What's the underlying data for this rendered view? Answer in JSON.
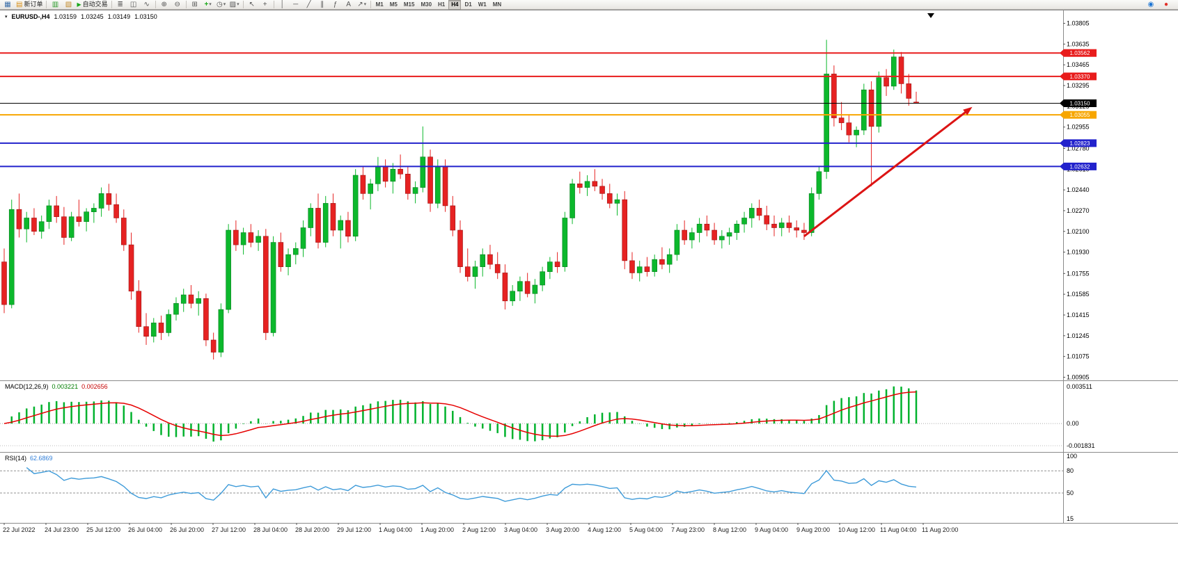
{
  "toolbar": {
    "new_order_label": "新订单",
    "autotrading_label": "自动交易",
    "timeframes": [
      "M1",
      "M5",
      "M15",
      "M30",
      "H1",
      "H4",
      "D1",
      "W1",
      "MN"
    ],
    "active_timeframe": "H4"
  },
  "icons": {
    "chart_window": "▦",
    "doc": "▤",
    "market_watch": "▥",
    "navigator": "▧",
    "play": "▶",
    "bars": "≣",
    "candles": "◫",
    "line_chart": "∿",
    "zoom_in": "⊕",
    "zoom_out": "⊖",
    "tile": "⊞",
    "indicators": "+",
    "clock": "◷",
    "template": "▨",
    "cursor": "↖",
    "crosshair": "+",
    "vline": "│",
    "hline": "─",
    "trendline": "╱",
    "channel": "∥",
    "fibo": "ƒ",
    "text_tool": "A",
    "arrow_tool": "↗",
    "dropdown": "▾",
    "community": "◉",
    "update": "●"
  },
  "header": {
    "title": "EURUSD-,H4",
    "open": "1.03159",
    "high": "1.03245",
    "low": "1.03149",
    "close": "1.03150"
  },
  "price_lines": [
    {
      "label": "1.03562",
      "value": 1.03562,
      "color": "#e81c1c",
      "width": 2
    },
    {
      "label": "1.03370",
      "value": 1.0337,
      "color": "#e81c1c",
      "width": 2
    },
    {
      "label": "1.03150",
      "value": 1.0315,
      "color": "#000000",
      "width": 1
    },
    {
      "label": "1.03055",
      "value": 1.03055,
      "color": "#f7a600",
      "width": 2
    },
    {
      "label": "1.02823",
      "value": 1.02823,
      "color": "#2222cc",
      "width": 2
    },
    {
      "label": "1.02632",
      "value": 1.02632,
      "color": "#2222cc",
      "width": 2
    }
  ],
  "arrow": {
    "from_index": 107,
    "from_price": 1.0206,
    "to_index": 129.5,
    "to_price": 1.0312,
    "color": "#dc1414"
  },
  "macd": {
    "label": "MACD(12,26,9)",
    "main_value": "0.003221",
    "signal_value": "0.002656",
    "axis_labels": [
      "0.003511",
      "0.00",
      "-0.001831"
    ],
    "histogram_color": "#00b22d",
    "signal_color": "#e60000"
  },
  "rsi": {
    "label": "RSI(14)",
    "value": "62.6869",
    "axis_labels": [
      "100",
      "80",
      "50",
      "15"
    ],
    "levels": [
      80,
      50
    ],
    "line_color": "#3e9bd9"
  },
  "colors": {
    "up": "#0cb82c",
    "down": "#e62222",
    "grid": "#8a8a8a"
  },
  "chart_data": {
    "type": "candlestick",
    "title": "EURUSD-,H4",
    "symbol": "EURUSD-",
    "timeframe": "H4",
    "y_range": [
      1.00885,
      1.03905
    ],
    "y_axis_ticks": [
      "1.03805",
      "1.03635",
      "1.03465",
      "1.03295",
      "1.03125",
      "1.02955",
      "1.02780",
      "1.02610",
      "1.02440",
      "1.02270",
      "1.02100",
      "1.01930",
      "1.01755",
      "1.01585",
      "1.01415",
      "1.01245",
      "1.01075",
      "1.00905"
    ],
    "x_labels": [
      "22 Jul 2022",
      "24 Jul 23:00",
      "25 Jul 12:00",
      "26 Jul 04:00",
      "26 Jul 20:00",
      "27 Jul 12:00",
      "28 Jul 04:00",
      "28 Jul 20:00",
      "29 Jul 12:00",
      "1 Aug 04:00",
      "1 Aug 20:00",
      "2 Aug 12:00",
      "3 Aug 04:00",
      "3 Aug 20:00",
      "4 Aug 12:00",
      "5 Aug 04:00",
      "7 Aug 23:00",
      "8 Aug 12:00",
      "9 Aug 04:00",
      "9 Aug 20:00",
      "10 Aug 12:00",
      "11 Aug 04:00",
      "11 Aug 20:00"
    ],
    "candles": [
      [
        1.0185,
        1.0196,
        1.0143,
        1.015
      ],
      [
        1.015,
        1.0236,
        1.0147,
        1.0228
      ],
      [
        1.0228,
        1.0241,
        1.0205,
        1.0212
      ],
      [
        1.0212,
        1.0226,
        1.0201,
        1.0221
      ],
      [
        1.0221,
        1.0229,
        1.0207,
        1.021
      ],
      [
        1.021,
        1.0223,
        1.0204,
        1.0218
      ],
      [
        1.0218,
        1.0236,
        1.0212,
        1.0231
      ],
      [
        1.0231,
        1.0239,
        1.0217,
        1.0222
      ],
      [
        1.0222,
        1.023,
        1.0199,
        1.0205
      ],
      [
        1.0205,
        1.0226,
        1.0202,
        1.0222
      ],
      [
        1.0222,
        1.0236,
        1.0214,
        1.0218
      ],
      [
        1.0218,
        1.0229,
        1.021,
        1.0226
      ],
      [
        1.0226,
        1.0233,
        1.0217,
        1.0229
      ],
      [
        1.0229,
        1.0246,
        1.0222,
        1.0241
      ],
      [
        1.0241,
        1.0249,
        1.0227,
        1.0232
      ],
      [
        1.0232,
        1.0241,
        1.0217,
        1.0221
      ],
      [
        1.0221,
        1.0228,
        1.0194,
        1.0199
      ],
      [
        1.0199,
        1.0209,
        1.0154,
        1.0161
      ],
      [
        1.0161,
        1.017,
        1.0127,
        1.0132
      ],
      [
        1.0132,
        1.0143,
        1.0117,
        1.0124
      ],
      [
        1.0124,
        1.0139,
        1.0119,
        1.0135
      ],
      [
        1.0135,
        1.0141,
        1.0121,
        1.0127
      ],
      [
        1.0127,
        1.0146,
        1.0124,
        1.0142
      ],
      [
        1.0142,
        1.0156,
        1.0137,
        1.0151
      ],
      [
        1.0151,
        1.0163,
        1.0144,
        1.0158
      ],
      [
        1.0158,
        1.0166,
        1.0147,
        1.0151
      ],
      [
        1.0151,
        1.0161,
        1.0141,
        1.0155
      ],
      [
        1.0155,
        1.0159,
        1.0116,
        1.0121
      ],
      [
        1.0121,
        1.0127,
        1.0105,
        1.0111
      ],
      [
        1.0111,
        1.0151,
        1.0107,
        1.0146
      ],
      [
        1.0146,
        1.0216,
        1.0143,
        1.0211
      ],
      [
        1.0211,
        1.0219,
        1.0194,
        1.0199
      ],
      [
        1.0199,
        1.0213,
        1.0191,
        1.0209
      ],
      [
        1.0209,
        1.0216,
        1.0197,
        1.0201
      ],
      [
        1.0201,
        1.0211,
        1.0194,
        1.0206
      ],
      [
        1.0206,
        1.0212,
        1.0121,
        1.0127
      ],
      [
        1.0127,
        1.0206,
        1.0124,
        1.0201
      ],
      [
        1.0201,
        1.0209,
        1.0177,
        1.0181
      ],
      [
        1.0181,
        1.0196,
        1.0174,
        1.0191
      ],
      [
        1.0191,
        1.0201,
        1.0183,
        1.0196
      ],
      [
        1.0196,
        1.0219,
        1.0189,
        1.0213
      ],
      [
        1.0213,
        1.0233,
        1.0206,
        1.0229
      ],
      [
        1.0229,
        1.0241,
        1.0196,
        1.0201
      ],
      [
        1.0201,
        1.0239,
        1.0197,
        1.0233
      ],
      [
        1.0233,
        1.0241,
        1.0206,
        1.0211
      ],
      [
        1.0211,
        1.0223,
        1.0196,
        1.0219
      ],
      [
        1.0219,
        1.0226,
        1.0201,
        1.0206
      ],
      [
        1.0206,
        1.0261,
        1.0202,
        1.0256
      ],
      [
        1.0256,
        1.0263,
        1.0236,
        1.0241
      ],
      [
        1.0241,
        1.0253,
        1.0228,
        1.0249
      ],
      [
        1.0249,
        1.0271,
        1.0243,
        1.0263
      ],
      [
        1.0263,
        1.0269,
        1.0246,
        1.0251
      ],
      [
        1.0251,
        1.0266,
        1.0241,
        1.0261
      ],
      [
        1.0261,
        1.0273,
        1.0253,
        1.0257
      ],
      [
        1.0257,
        1.0263,
        1.0236,
        1.0241
      ],
      [
        1.0241,
        1.0251,
        1.0233,
        1.0246
      ],
      [
        1.0246,
        1.0296,
        1.0242,
        1.0271
      ],
      [
        1.0271,
        1.0277,
        1.0226,
        1.0233
      ],
      [
        1.0233,
        1.0269,
        1.0229,
        1.0263
      ],
      [
        1.0263,
        1.0269,
        1.0226,
        1.0231
      ],
      [
        1.0231,
        1.0239,
        1.0206,
        1.0211
      ],
      [
        1.0211,
        1.0219,
        1.0176,
        1.0181
      ],
      [
        1.0181,
        1.0196,
        1.0169,
        1.0173
      ],
      [
        1.0173,
        1.0186,
        1.0163,
        1.0181
      ],
      [
        1.0181,
        1.0196,
        1.0173,
        1.0191
      ],
      [
        1.0191,
        1.0199,
        1.0179,
        1.0183
      ],
      [
        1.0183,
        1.0193,
        1.0171,
        1.0176
      ],
      [
        1.0176,
        1.0183,
        1.0146,
        1.0153
      ],
      [
        1.0153,
        1.0166,
        1.0149,
        1.0161
      ],
      [
        1.0161,
        1.0173,
        1.0153,
        1.0169
      ],
      [
        1.0169,
        1.0176,
        1.0156,
        1.0159
      ],
      [
        1.0159,
        1.0171,
        1.0151,
        1.0166
      ],
      [
        1.0166,
        1.0181,
        1.0161,
        1.0177
      ],
      [
        1.0177,
        1.0189,
        1.0171,
        1.0185
      ],
      [
        1.0185,
        1.0193,
        1.0176,
        1.0181
      ],
      [
        1.0181,
        1.0226,
        1.0177,
        1.0221
      ],
      [
        1.0221,
        1.0253,
        1.0216,
        1.0249
      ],
      [
        1.0249,
        1.0259,
        1.0241,
        1.0246
      ],
      [
        1.0246,
        1.0256,
        1.0239,
        1.0251
      ],
      [
        1.0251,
        1.0261,
        1.0243,
        1.0247
      ],
      [
        1.0247,
        1.0253,
        1.0236,
        1.0241
      ],
      [
        1.0241,
        1.0249,
        1.0229,
        1.0233
      ],
      [
        1.0233,
        1.0241,
        1.0223,
        1.0236
      ],
      [
        1.0236,
        1.0243,
        1.0179,
        1.0186
      ],
      [
        1.0186,
        1.0193,
        1.0171,
        1.0176
      ],
      [
        1.0176,
        1.0186,
        1.0169,
        1.0181
      ],
      [
        1.0181,
        1.0189,
        1.0173,
        1.0177
      ],
      [
        1.0177,
        1.0191,
        1.0173,
        1.0187
      ],
      [
        1.0187,
        1.0197,
        1.0179,
        1.0183
      ],
      [
        1.0183,
        1.0196,
        1.0176,
        1.0191
      ],
      [
        1.0191,
        1.0216,
        1.0186,
        1.0211
      ],
      [
        1.0211,
        1.0219,
        1.0199,
        1.0203
      ],
      [
        1.0203,
        1.0213,
        1.0196,
        1.0209
      ],
      [
        1.0209,
        1.0221,
        1.0201,
        1.0216
      ],
      [
        1.0216,
        1.0223,
        1.0206,
        1.0211
      ],
      [
        1.0211,
        1.0217,
        1.0199,
        1.0203
      ],
      [
        1.0203,
        1.0211,
        1.0196,
        1.0206
      ],
      [
        1.0206,
        1.0213,
        1.0199,
        1.0209
      ],
      [
        1.0209,
        1.0219,
        1.0203,
        1.0216
      ],
      [
        1.0216,
        1.0226,
        1.0209,
        1.0221
      ],
      [
        1.0221,
        1.0233,
        1.0213,
        1.0229
      ],
      [
        1.0229,
        1.0236,
        1.0219,
        1.0223
      ],
      [
        1.0223,
        1.0231,
        1.0211,
        1.0216
      ],
      [
        1.0216,
        1.0223,
        1.0206,
        1.0213
      ],
      [
        1.0213,
        1.0221,
        1.0206,
        1.0217
      ],
      [
        1.0217,
        1.0223,
        1.0209,
        1.0213
      ],
      [
        1.0213,
        1.0219,
        1.0205,
        1.0211
      ],
      [
        1.0211,
        1.0217,
        1.0203,
        1.0209
      ],
      [
        1.0209,
        1.0246,
        1.0206,
        1.0241
      ],
      [
        1.0241,
        1.0263,
        1.0236,
        1.0259
      ],
      [
        1.0259,
        1.0367,
        1.0253,
        1.0339
      ],
      [
        1.0339,
        1.0346,
        1.0296,
        1.0303
      ],
      [
        1.0303,
        1.0316,
        1.0293,
        1.0299
      ],
      [
        1.0299,
        1.0306,
        1.0283,
        1.0289
      ],
      [
        1.0289,
        1.0296,
        1.0279,
        1.0293
      ],
      [
        1.0293,
        1.0331,
        1.0289,
        1.0326
      ],
      [
        1.0326,
        1.0333,
        1.0247,
        1.0296
      ],
      [
        1.0296,
        1.0341,
        1.0291,
        1.0336
      ],
      [
        1.0336,
        1.0343,
        1.0321,
        1.0329
      ],
      [
        1.0329,
        1.0359,
        1.0326,
        1.0353
      ],
      [
        1.0353,
        1.0357,
        1.0323,
        1.0331
      ],
      [
        1.0331,
        1.0339,
        1.0313,
        1.0319
      ],
      [
        1.0316,
        1.03245,
        1.03149,
        1.0315
      ]
    ]
  }
}
